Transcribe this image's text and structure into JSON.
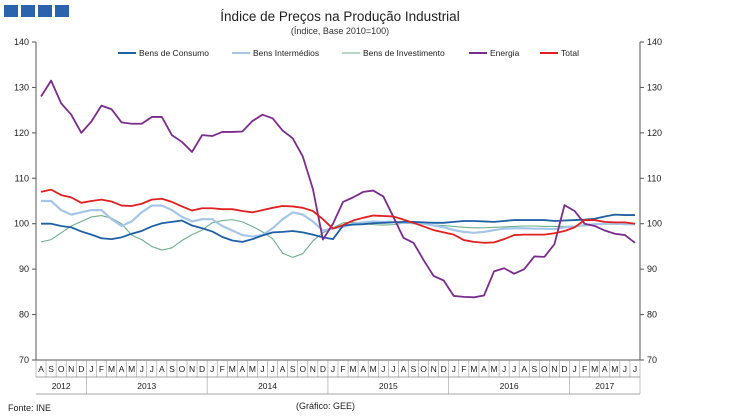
{
  "chart_data": {
    "type": "line",
    "title": "Índice de Preços na Produção Industrial",
    "subtitle": "(Índice,  Base 2010=100)",
    "footer_left": "Fonte: INE",
    "footer_mid": "(Gráfico:  GEE)",
    "ylim": [
      70,
      140
    ],
    "yticks": [
      70,
      80,
      90,
      100,
      110,
      120,
      130,
      140
    ],
    "month_letters": [
      "A",
      "S",
      "O",
      "N",
      "D",
      "J",
      "F",
      "M",
      "A",
      "M",
      "J",
      "J",
      "A",
      "S",
      "O",
      "N",
      "D",
      "J",
      "F",
      "M",
      "A",
      "M",
      "J",
      "J",
      "A",
      "S",
      "O",
      "N",
      "D",
      "J",
      "F",
      "M",
      "A",
      "M",
      "J",
      "J",
      "A",
      "S",
      "O",
      "N",
      "D",
      "J",
      "F",
      "M",
      "A",
      "M",
      "J",
      "J",
      "A",
      "S",
      "O",
      "N",
      "D",
      "J",
      "F",
      "M",
      "A",
      "M",
      "J",
      "J"
    ],
    "year_groups": [
      {
        "label": "2012",
        "start": 0,
        "end": 4
      },
      {
        "label": "2013",
        "start": 5,
        "end": 16
      },
      {
        "label": "2014",
        "start": 17,
        "end": 28
      },
      {
        "label": "2015",
        "start": 29,
        "end": 40
      },
      {
        "label": "2016",
        "start": 41,
        "end": 52
      },
      {
        "label": "2017",
        "start": 53,
        "end": 59
      }
    ],
    "series": [
      {
        "name": "Bens de Consumo",
        "color": "#1f5fa5",
        "values": [
          100,
          100,
          99.5,
          99.2,
          98.3,
          97.6,
          96.8,
          96.6,
          97,
          97.8,
          98.4,
          99.4,
          100.1,
          100.4,
          100.7,
          99.6,
          99,
          98.3,
          97.1,
          96.3,
          96,
          96.6,
          97.4,
          98.1,
          98.2,
          98.4,
          98.1,
          97.6,
          97,
          96.6,
          99.6,
          99.8,
          99.9,
          100.1,
          100.2,
          100.3,
          100.4,
          100.4,
          100.3,
          100.2,
          100.2,
          100.4,
          100.6,
          100.6,
          100.5,
          100.4,
          100.6,
          100.8,
          100.8,
          100.8,
          100.8,
          100.6,
          100.7,
          100.8,
          100.9,
          101.1,
          101.6,
          102,
          101.9,
          101.9
        ]
      },
      {
        "name": "Bens Intermédios",
        "color": "#a5c6e8",
        "values": [
          105,
          105,
          103,
          102,
          102.5,
          103,
          103,
          101,
          99.5,
          100.5,
          102.5,
          104,
          104,
          103,
          101.5,
          100.5,
          101,
          101,
          99.5,
          98.5,
          97.5,
          97.2,
          97.5,
          99,
          101,
          102.5,
          102,
          100.5,
          98.5,
          99,
          99.3,
          100,
          100.3,
          100.5,
          100.4,
          100.4,
          100.2,
          100.3,
          100,
          99.6,
          99.2,
          98.6,
          98.2,
          98,
          98.2,
          98.6,
          98.9,
          99,
          99,
          98.9,
          98.9,
          98.8,
          99.2,
          99.4,
          99.7,
          99.9,
          100,
          100,
          99.9,
          99.9
        ]
      },
      {
        "name": "Bens de Investimento",
        "color": "#6fb08f",
        "values": [
          96,
          96.5,
          98,
          99.5,
          100.5,
          101.5,
          101.8,
          101.2,
          100,
          97.5,
          96.5,
          95,
          94.2,
          94.7,
          96.3,
          97.6,
          98.6,
          100.2,
          100.7,
          100.9,
          100.4,
          99.4,
          98.2,
          96.7,
          93.5,
          92.6,
          93.4,
          96.2,
          98,
          99.1,
          100.2,
          100.3,
          100,
          99.8,
          99.7,
          99.8,
          100.1,
          100,
          99.9,
          99.7,
          99.6,
          99.4,
          99.2,
          99.1,
          99.1,
          99.2,
          99.3,
          99.4,
          99.5,
          99.5,
          99.4,
          99.4,
          99.4,
          99.5,
          99.5,
          99.8,
          99.9,
          99.9,
          99.8,
          99.8
        ]
      },
      {
        "name": "Energia",
        "color": "#7b2d8e",
        "values": [
          128,
          131.5,
          126.5,
          124,
          120,
          122.5,
          126,
          125.2,
          122.3,
          122,
          122,
          123.5,
          123.5,
          119.5,
          118,
          115.8,
          119.5,
          119.3,
          120.2,
          120.2,
          120.3,
          122.6,
          124,
          123.2,
          120.5,
          118.8,
          114.8,
          107.7,
          96.5,
          100,
          104.8,
          105.8,
          107,
          107.3,
          106,
          101.5,
          96.9,
          95.8,
          92,
          88.5,
          87.5,
          84.1,
          83.9,
          83.8,
          84.2,
          89.5,
          90.2,
          89,
          90,
          92.8,
          92.7,
          95.5,
          104.1,
          102.8,
          100,
          99.5,
          98.5,
          97.8,
          97.5,
          95.8
        ]
      },
      {
        "name": "Total",
        "color": "#e02020",
        "values": [
          107,
          107.5,
          106.3,
          105.8,
          104.6,
          105,
          105.3,
          104.9,
          104,
          103.9,
          104.4,
          105.3,
          105.5,
          104.8,
          103.8,
          102.9,
          103.4,
          103.4,
          103.2,
          103.2,
          102.8,
          102.5,
          103,
          103.5,
          103.9,
          103.8,
          103.5,
          102.8,
          101,
          98.9,
          99.7,
          100.7,
          101.3,
          101.8,
          101.7,
          101.6,
          100.9,
          100.2,
          99.4,
          98.6,
          98.1,
          97.6,
          96.4,
          96,
          95.8,
          95.9,
          96.6,
          97.5,
          97.6,
          97.6,
          97.6,
          97.9,
          98.4,
          99.2,
          100.8,
          100.8,
          100.4,
          100.3,
          100.3,
          100
        ]
      }
    ]
  }
}
